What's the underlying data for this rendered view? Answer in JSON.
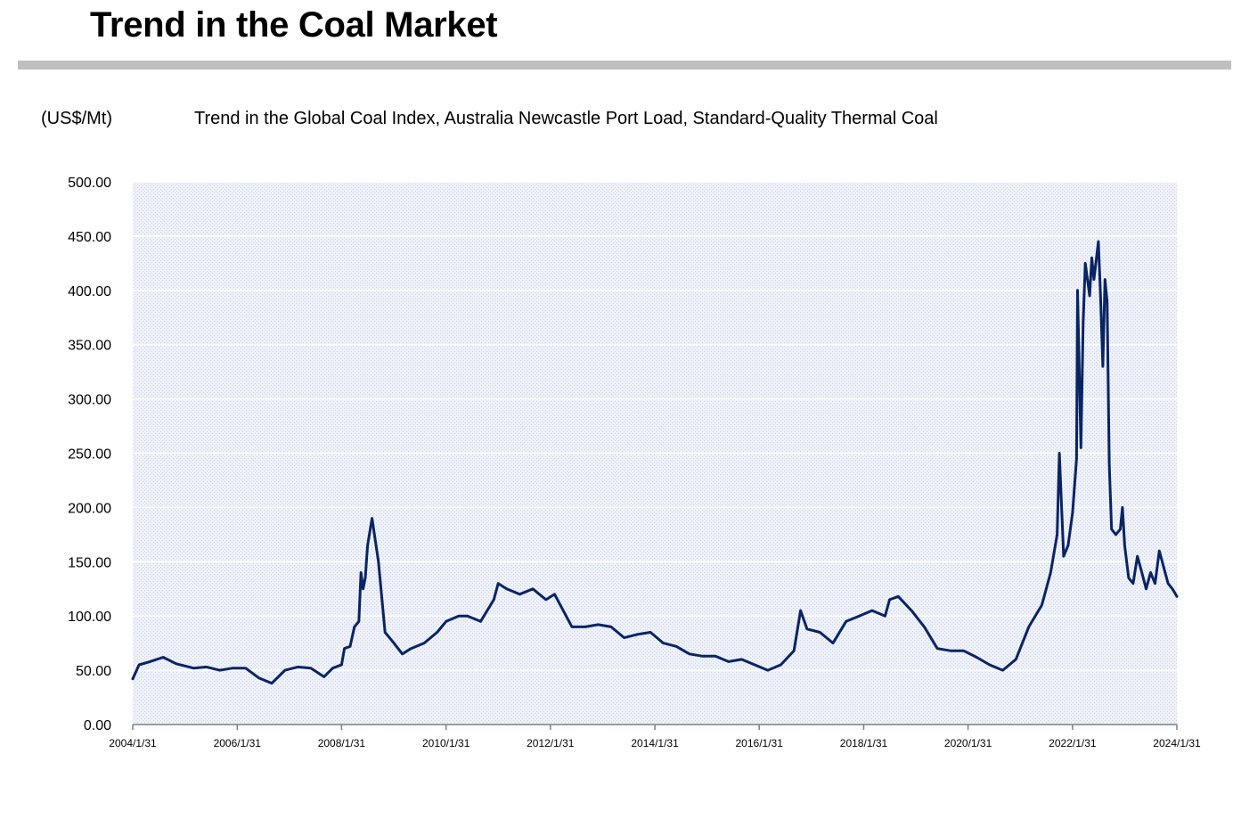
{
  "page": {
    "title": "Trend in the Coal Market"
  },
  "chart_data": {
    "type": "line",
    "title": "Trend in the Global Coal Index, Australia Newcastle Port Load, Standard-Quality Thermal Coal",
    "ylabel": "(US$/Mt)",
    "xlabel": "",
    "ylim": [
      0,
      500
    ],
    "xlim": [
      "2004-01-31",
      "2024-01-31"
    ],
    "y_ticks": [
      "0.00",
      "50.00",
      "100.00",
      "150.00",
      "200.00",
      "250.00",
      "300.00",
      "350.00",
      "400.00",
      "450.00",
      "500.00"
    ],
    "x_ticks": [
      "2004/1/31",
      "2006/1/31",
      "2008/1/31",
      "2010/1/31",
      "2012/1/31",
      "2014/1/31",
      "2016/1/31",
      "2018/1/31",
      "2020/1/31",
      "2022/1/31",
      "2024/1/31"
    ],
    "grid": true,
    "legend": "none",
    "colors": {
      "line": "#0a2463",
      "plot_bg": "#e4e9f4",
      "grid": "#ffffff",
      "title_rule": "#bfbfbf"
    },
    "series": [
      {
        "x": [
          "2004-01-31",
          "2004-03-15",
          "2004-05-31",
          "2004-08-31",
          "2004-11-30",
          "2005-03-31",
          "2005-06-30",
          "2005-09-30",
          "2005-12-31",
          "2006-03-31",
          "2006-06-30",
          "2006-09-30",
          "2006-12-31",
          "2007-03-31",
          "2007-06-30",
          "2007-09-30",
          "2007-11-30",
          "2008-01-31",
          "2008-02-20",
          "2008-03-31",
          "2008-04-30",
          "2008-05-31",
          "2008-06-15",
          "2008-06-30",
          "2008-07-15",
          "2008-07-31",
          "2008-08-31",
          "2008-10-15",
          "2008-11-30",
          "2009-01-31",
          "2009-03-31",
          "2009-05-31",
          "2009-08-31",
          "2009-11-30",
          "2010-01-31",
          "2010-04-30",
          "2010-06-30",
          "2010-09-30",
          "2010-12-31",
          "2011-01-31",
          "2011-03-31",
          "2011-06-30",
          "2011-09-30",
          "2011-12-31",
          "2012-02-29",
          "2012-04-30",
          "2012-06-30",
          "2012-09-30",
          "2012-12-31",
          "2013-03-31",
          "2013-06-30",
          "2013-09-30",
          "2013-12-31",
          "2014-03-31",
          "2014-06-30",
          "2014-09-30",
          "2014-12-31",
          "2015-03-31",
          "2015-06-30",
          "2015-09-30",
          "2015-12-31",
          "2016-03-31",
          "2016-06-30",
          "2016-09-30",
          "2016-11-15",
          "2016-12-31",
          "2017-03-31",
          "2017-06-30",
          "2017-09-30",
          "2017-12-31",
          "2018-03-31",
          "2018-06-30",
          "2018-07-31",
          "2018-09-30",
          "2018-12-31",
          "2019-03-31",
          "2019-06-30",
          "2019-09-30",
          "2019-12-31",
          "2020-03-31",
          "2020-06-30",
          "2020-09-30",
          "2020-12-31",
          "2021-03-31",
          "2021-06-30",
          "2021-08-31",
          "2021-10-15",
          "2021-10-31",
          "2021-11-30",
          "2021-12-31",
          "2022-01-31",
          "2022-02-28",
          "2022-03-07",
          "2022-03-31",
          "2022-04-15",
          "2022-04-30",
          "2022-05-31",
          "2022-06-15",
          "2022-06-30",
          "2022-07-31",
          "2022-08-15",
          "2022-08-31",
          "2022-09-15",
          "2022-09-30",
          "2022-10-15",
          "2022-10-31",
          "2022-11-30",
          "2022-12-31",
          "2023-01-15",
          "2023-01-31",
          "2023-02-28",
          "2023-03-31",
          "2023-04-30",
          "2023-05-31",
          "2023-06-30",
          "2023-07-31",
          "2023-08-31",
          "2023-09-30",
          "2023-10-31",
          "2023-11-30",
          "2023-12-31",
          "2024-01-31"
        ],
        "values": [
          42,
          55,
          58,
          62,
          56,
          52,
          53,
          50,
          52,
          52,
          43,
          38,
          50,
          53,
          52,
          44,
          52,
          55,
          70,
          72,
          90,
          95,
          140,
          125,
          135,
          165,
          190,
          150,
          85,
          75,
          65,
          70,
          75,
          85,
          95,
          100,
          100,
          95,
          115,
          130,
          125,
          120,
          125,
          115,
          120,
          105,
          90,
          90,
          92,
          90,
          80,
          83,
          85,
          75,
          72,
          65,
          63,
          63,
          58,
          60,
          55,
          50,
          55,
          68,
          105,
          88,
          85,
          75,
          95,
          100,
          105,
          100,
          115,
          118,
          105,
          90,
          70,
          68,
          68,
          62,
          55,
          50,
          60,
          90,
          110,
          140,
          175,
          250,
          155,
          165,
          195,
          245,
          400,
          255,
          370,
          425,
          395,
          430,
          410,
          445,
          395,
          330,
          410,
          390,
          240,
          180,
          175,
          180,
          200,
          165,
          135,
          130,
          155,
          140,
          125,
          140,
          130,
          160,
          145,
          130,
          125,
          118
        ]
      }
    ]
  }
}
